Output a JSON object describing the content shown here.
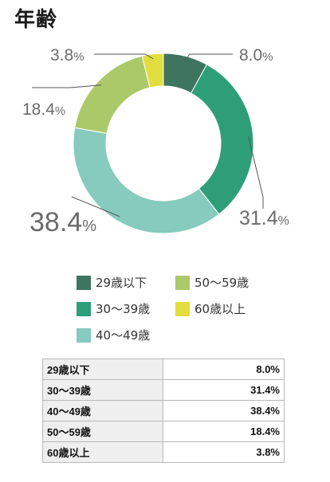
{
  "title": "年齢",
  "colors": [
    "#3e7560",
    "#2e9e79",
    "#86cbbd",
    "#acc96a",
    "#e2de3f"
  ],
  "chart_data": {
    "type": "pie",
    "categories": [
      "29歳以下",
      "30〜39歳",
      "40〜49歳",
      "50〜59歳",
      "60歳以上"
    ],
    "values": [
      8.0,
      31.4,
      38.4,
      18.4,
      3.8
    ],
    "value_labels": [
      "8.0",
      "31.4",
      "38.4",
      "18.4",
      "3.8"
    ],
    "unit": "%",
    "title": "年齢",
    "legend_position": "bottom"
  },
  "legend": [
    "29歳以下",
    "50〜59歳",
    "30〜39歳",
    "60歳以上",
    "40〜49歳"
  ],
  "table": {
    "rows": [
      {
        "category": "29歳以下",
        "value": "8.0%"
      },
      {
        "category": "30〜39歳",
        "value": "31.4%"
      },
      {
        "category": "40〜49歳",
        "value": "38.4%"
      },
      {
        "category": "50〜59歳",
        "value": "18.4%"
      },
      {
        "category": "60歳以上",
        "value": "3.8%"
      }
    ]
  }
}
